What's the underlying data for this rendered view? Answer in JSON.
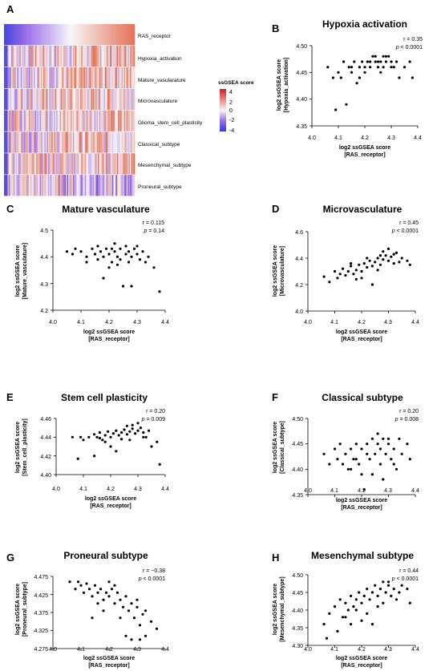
{
  "figure": {
    "heatmap": {
      "letter": "A",
      "rows": [
        "RAS_receptor",
        "Hypoxia_activation",
        "Mature_vasularature",
        "Microvasculature",
        "Glioma_stem_cell_plasticity",
        "Classical_subtype",
        "Mesenchymal_subtype",
        "Proneural_subtype"
      ],
      "legend_title": "ssGSEA score",
      "legend_ticks": [
        "4",
        "2",
        "0",
        "-2",
        "-4"
      ],
      "colors": {
        "high": "#d7191c",
        "mid": "#f7f7f7",
        "low": "#2c3cd9",
        "lowmid": "#9b6ee8"
      }
    },
    "scatter_common": {
      "xlabel_line1": "log2 ssGSEA score",
      "xlabel_line2": "[RAS_receptor]",
      "ylabel_line1": "log2 ssGSEA score",
      "xticks": [
        "4.0",
        "4.1",
        "4.2",
        "4.3",
        "4.4"
      ],
      "r_prefix": "r = ",
      "p_prefix": "p",
      "point_color": "#000000"
    },
    "panels": [
      {
        "letter": "B",
        "title": "Hypoxia activation",
        "ylabel_line2": "[Hypoxia_activation]",
        "r": "0.35",
        "p": " < 0.0001",
        "yticks": [
          "4.50",
          "4.45",
          "4.40",
          "4.35"
        ]
      },
      {
        "letter": "C",
        "title": "Mature vasculature",
        "ylabel_line2": "[Mature_vasculature]",
        "r": "0.115",
        "p": " = 0.14",
        "yticks": [
          "4.5",
          "4.4",
          "4.3",
          "4.2"
        ]
      },
      {
        "letter": "D",
        "title": "Microvasculature",
        "ylabel_line2": "[Microvasculature]",
        "r": "0.45",
        "p": " < 0.0001",
        "yticks": [
          "4.6",
          "4.4",
          "4.2",
          "4.0"
        ]
      },
      {
        "letter": "E",
        "title": "Stem cell plasticity",
        "ylabel_line2": "[Stem_cell_plasticity]",
        "r": "0.20",
        "p": " = 0.009",
        "yticks": [
          "4.46",
          "4.44",
          "4.42",
          "4.40"
        ]
      },
      {
        "letter": "F",
        "title": "Classical subtype",
        "ylabel_line2": "[Classical_subtype]",
        "r": "0.20",
        "p": " = 0.008",
        "yticks": [
          "4.50",
          "4.45",
          "4.40",
          "4.35"
        ]
      },
      {
        "letter": "G",
        "title": "Proneural subtype",
        "ylabel_line2": "[Proneural_subtype]",
        "r": "−0.38",
        "p": " < 0.0001",
        "yticks": [
          "4.475",
          "4.425",
          "4.375",
          "4.325",
          "4.275"
        ]
      },
      {
        "letter": "H",
        "title": "Mesenchymal subtype",
        "ylabel_line2": "[Mesenchymal_subtype]",
        "r": "0.44",
        "p": " < 0.0001",
        "yticks": [
          "4.50",
          "4.45",
          "4.40",
          "4.35",
          "4.30"
        ]
      }
    ]
  },
  "chart_data": [
    {
      "type": "heatmap",
      "rows": [
        "RAS_receptor",
        "Hypoxia_activation",
        "Mature_vasularature",
        "Microvasculature",
        "Glioma_stem_cell_plasticity",
        "Classical_subtype",
        "Mesenchymal_subtype",
        "Proneural_subtype"
      ],
      "colorbar_range": [
        -4,
        4
      ],
      "legend_title": "ssGSEA score"
    },
    {
      "type": "scatter",
      "title": "Hypoxia activation",
      "xlim": [
        4.0,
        4.4
      ],
      "ylim": [
        4.35,
        4.5
      ],
      "r": 0.35,
      "p": "< 0.0001",
      "points": [
        [
          4.06,
          4.46
        ],
        [
          4.08,
          4.44
        ],
        [
          4.09,
          4.38
        ],
        [
          4.1,
          4.45
        ],
        [
          4.11,
          4.44
        ],
        [
          4.12,
          4.47
        ],
        [
          4.13,
          4.39
        ],
        [
          4.14,
          4.46
        ],
        [
          4.15,
          4.45
        ],
        [
          4.16,
          4.47
        ],
        [
          4.17,
          4.43
        ],
        [
          4.18,
          4.46
        ],
        [
          4.19,
          4.47
        ],
        [
          4.2,
          4.45
        ],
        [
          4.21,
          4.47
        ],
        [
          4.22,
          4.46
        ],
        [
          4.23,
          4.48
        ],
        [
          4.24,
          4.47
        ],
        [
          4.25,
          4.46
        ],
        [
          4.26,
          4.47
        ],
        [
          4.27,
          4.46
        ],
        [
          4.28,
          4.47
        ],
        [
          4.29,
          4.48
        ],
        [
          4.3,
          4.47
        ],
        [
          4.31,
          4.46
        ],
        [
          4.32,
          4.47
        ],
        [
          4.33,
          4.44
        ],
        [
          4.35,
          4.46
        ],
        [
          4.37,
          4.47
        ],
        [
          4.38,
          4.44
        ],
        [
          4.22,
          4.47
        ],
        [
          4.24,
          4.48
        ],
        [
          4.26,
          4.45
        ],
        [
          4.28,
          4.48
        ],
        [
          4.2,
          4.46
        ],
        [
          4.18,
          4.44
        ],
        [
          4.3,
          4.46
        ],
        [
          4.15,
          4.46
        ],
        [
          4.25,
          4.47
        ],
        [
          4.27,
          4.48
        ]
      ]
    },
    {
      "type": "scatter",
      "title": "Mature vasculature",
      "xlim": [
        4.0,
        4.4
      ],
      "ylim": [
        4.2,
        4.5
      ],
      "r": 0.115,
      "p": "= 0.14",
      "points": [
        [
          4.05,
          4.42
        ],
        [
          4.07,
          4.41
        ],
        [
          4.08,
          4.43
        ],
        [
          4.1,
          4.42
        ],
        [
          4.12,
          4.4
        ],
        [
          4.14,
          4.43
        ],
        [
          4.15,
          4.41
        ],
        [
          4.16,
          4.39
        ],
        [
          4.17,
          4.42
        ],
        [
          4.18,
          4.4
        ],
        [
          4.19,
          4.43
        ],
        [
          4.2,
          4.41
        ],
        [
          4.21,
          4.38
        ],
        [
          4.22,
          4.42
        ],
        [
          4.23,
          4.4
        ],
        [
          4.24,
          4.43
        ],
        [
          4.25,
          4.29
        ],
        [
          4.26,
          4.41
        ],
        [
          4.27,
          4.42
        ],
        [
          4.28,
          4.4
        ],
        [
          4.29,
          4.43
        ],
        [
          4.3,
          4.41
        ],
        [
          4.31,
          4.39
        ],
        [
          4.32,
          4.42
        ],
        [
          4.33,
          4.38
        ],
        [
          4.36,
          4.36
        ],
        [
          4.38,
          4.27
        ],
        [
          4.2,
          4.36
        ],
        [
          4.18,
          4.32
        ],
        [
          4.28,
          4.29
        ],
        [
          4.22,
          4.45
        ],
        [
          4.26,
          4.44
        ],
        [
          4.3,
          4.44
        ],
        [
          4.24,
          4.39
        ],
        [
          4.16,
          4.44
        ],
        [
          4.12,
          4.38
        ],
        [
          4.34,
          4.4
        ],
        [
          4.21,
          4.43
        ],
        [
          4.27,
          4.38
        ],
        [
          4.23,
          4.37
        ]
      ]
    },
    {
      "type": "scatter",
      "title": "Microvasculature",
      "xlim": [
        4.0,
        4.4
      ],
      "ylim": [
        4.0,
        4.6
      ],
      "r": 0.45,
      "p": "< 0.0001",
      "points": [
        [
          4.06,
          4.26
        ],
        [
          4.08,
          4.22
        ],
        [
          4.1,
          4.3
        ],
        [
          4.11,
          4.25
        ],
        [
          4.12,
          4.28
        ],
        [
          4.13,
          4.32
        ],
        [
          4.14,
          4.27
        ],
        [
          4.15,
          4.3
        ],
        [
          4.16,
          4.34
        ],
        [
          4.17,
          4.28
        ],
        [
          4.18,
          4.31
        ],
        [
          4.19,
          4.35
        ],
        [
          4.2,
          4.3
        ],
        [
          4.21,
          4.36
        ],
        [
          4.22,
          4.33
        ],
        [
          4.23,
          4.38
        ],
        [
          4.24,
          4.34
        ],
        [
          4.25,
          4.37
        ],
        [
          4.26,
          4.4
        ],
        [
          4.27,
          4.35
        ],
        [
          4.28,
          4.39
        ],
        [
          4.29,
          4.42
        ],
        [
          4.3,
          4.38
        ],
        [
          4.31,
          4.41
        ],
        [
          4.32,
          4.36
        ],
        [
          4.33,
          4.44
        ],
        [
          4.35,
          4.4
        ],
        [
          4.37,
          4.38
        ],
        [
          4.38,
          4.35
        ],
        [
          4.2,
          4.25
        ],
        [
          4.24,
          4.2
        ],
        [
          4.28,
          4.45
        ],
        [
          4.3,
          4.47
        ],
        [
          4.26,
          4.31
        ],
        [
          4.22,
          4.4
        ],
        [
          4.18,
          4.24
        ],
        [
          4.32,
          4.43
        ],
        [
          4.27,
          4.42
        ],
        [
          4.16,
          4.36
        ],
        [
          4.34,
          4.37
        ]
      ]
    },
    {
      "type": "scatter",
      "title": "Stem cell plasticity",
      "xlim": [
        4.0,
        4.4
      ],
      "ylim": [
        4.4,
        4.46
      ],
      "r": 0.2,
      "p": "= 0.009",
      "points": [
        [
          4.06,
          4.44
        ],
        [
          4.08,
          4.417
        ],
        [
          4.09,
          4.44
        ],
        [
          4.1,
          4.437
        ],
        [
          4.12,
          4.44
        ],
        [
          4.14,
          4.443
        ],
        [
          4.15,
          4.44
        ],
        [
          4.16,
          4.445
        ],
        [
          4.17,
          4.437
        ],
        [
          4.18,
          4.442
        ],
        [
          4.19,
          4.446
        ],
        [
          4.2,
          4.44
        ],
        [
          4.21,
          4.444
        ],
        [
          4.22,
          4.447
        ],
        [
          4.23,
          4.442
        ],
        [
          4.24,
          4.445
        ],
        [
          4.25,
          4.448
        ],
        [
          4.26,
          4.443
        ],
        [
          4.27,
          4.446
        ],
        [
          4.28,
          4.449
        ],
        [
          4.29,
          4.444
        ],
        [
          4.3,
          4.447
        ],
        [
          4.31,
          4.45
        ],
        [
          4.32,
          4.445
        ],
        [
          4.33,
          4.44
        ],
        [
          4.35,
          4.43
        ],
        [
          4.37,
          4.435
        ],
        [
          4.38,
          4.411
        ],
        [
          4.2,
          4.43
        ],
        [
          4.22,
          4.425
        ],
        [
          4.26,
          4.452
        ],
        [
          4.28,
          4.453
        ],
        [
          4.3,
          4.455
        ],
        [
          4.24,
          4.438
        ],
        [
          4.18,
          4.435
        ],
        [
          4.14,
          4.42
        ],
        [
          4.32,
          4.44
        ],
        [
          4.27,
          4.437
        ],
        [
          4.16,
          4.439
        ],
        [
          4.34,
          4.447
        ]
      ]
    },
    {
      "type": "scatter",
      "title": "Classical subtype",
      "xlim": [
        4.0,
        4.4
      ],
      "ylim": [
        4.35,
        4.5
      ],
      "r": 0.2,
      "p": "= 0.008",
      "points": [
        [
          4.06,
          4.43
        ],
        [
          4.08,
          4.41
        ],
        [
          4.1,
          4.44
        ],
        [
          4.11,
          4.42
        ],
        [
          4.12,
          4.45
        ],
        [
          4.13,
          4.41
        ],
        [
          4.14,
          4.43
        ],
        [
          4.15,
          4.4
        ],
        [
          4.16,
          4.44
        ],
        [
          4.17,
          4.42
        ],
        [
          4.18,
          4.45
        ],
        [
          4.19,
          4.41
        ],
        [
          4.2,
          4.44
        ],
        [
          4.21,
          4.36
        ],
        [
          4.22,
          4.45
        ],
        [
          4.23,
          4.42
        ],
        [
          4.24,
          4.46
        ],
        [
          4.25,
          4.43
        ],
        [
          4.26,
          4.45
        ],
        [
          4.27,
          4.41
        ],
        [
          4.28,
          4.46
        ],
        [
          4.29,
          4.43
        ],
        [
          4.3,
          4.45
        ],
        [
          4.31,
          4.42
        ],
        [
          4.32,
          4.44
        ],
        [
          4.33,
          4.4
        ],
        [
          4.35,
          4.43
        ],
        [
          4.37,
          4.45
        ],
        [
          4.38,
          4.42
        ],
        [
          4.2,
          4.39
        ],
        [
          4.24,
          4.39
        ],
        [
          4.28,
          4.38
        ],
        [
          4.3,
          4.46
        ],
        [
          4.26,
          4.47
        ],
        [
          4.22,
          4.43
        ],
        [
          4.18,
          4.42
        ],
        [
          4.32,
          4.41
        ],
        [
          4.27,
          4.44
        ],
        [
          4.16,
          4.4
        ],
        [
          4.34,
          4.46
        ]
      ]
    },
    {
      "type": "scatter",
      "title": "Proneural subtype",
      "xlim": [
        4.0,
        4.4
      ],
      "ylim": [
        4.275,
        4.475
      ],
      "r": -0.38,
      "p": "< 0.0001",
      "points": [
        [
          4.06,
          4.46
        ],
        [
          4.08,
          4.44
        ],
        [
          4.09,
          4.46
        ],
        [
          4.1,
          4.45
        ],
        [
          4.11,
          4.43
        ],
        [
          4.12,
          4.455
        ],
        [
          4.13,
          4.44
        ],
        [
          4.14,
          4.42
        ],
        [
          4.15,
          4.45
        ],
        [
          4.16,
          4.43
        ],
        [
          4.17,
          4.44
        ],
        [
          4.18,
          4.41
        ],
        [
          4.19,
          4.43
        ],
        [
          4.2,
          4.42
        ],
        [
          4.21,
          4.44
        ],
        [
          4.22,
          4.4
        ],
        [
          4.23,
          4.43
        ],
        [
          4.24,
          4.41
        ],
        [
          4.25,
          4.39
        ],
        [
          4.26,
          4.42
        ],
        [
          4.27,
          4.38
        ],
        [
          4.28,
          4.4
        ],
        [
          4.29,
          4.36
        ],
        [
          4.3,
          4.39
        ],
        [
          4.31,
          4.34
        ],
        [
          4.32,
          4.37
        ],
        [
          4.33,
          4.31
        ],
        [
          4.35,
          4.35
        ],
        [
          4.37,
          4.33
        ],
        [
          4.26,
          4.31
        ],
        [
          4.28,
          4.3
        ],
        [
          4.31,
          4.3
        ],
        [
          4.2,
          4.46
        ],
        [
          4.22,
          4.45
        ],
        [
          4.18,
          4.38
        ],
        [
          4.24,
          4.36
        ],
        [
          4.16,
          4.4
        ],
        [
          4.3,
          4.41
        ],
        [
          4.14,
          4.36
        ],
        [
          4.33,
          4.38
        ]
      ]
    },
    {
      "type": "scatter",
      "title": "Mesenchymal subtype",
      "xlim": [
        4.0,
        4.4
      ],
      "ylim": [
        4.3,
        4.5
      ],
      "r": 0.44,
      "p": "< 0.0001",
      "points": [
        [
          4.06,
          4.36
        ],
        [
          4.07,
          4.32
        ],
        [
          4.08,
          4.39
        ],
        [
          4.1,
          4.41
        ],
        [
          4.11,
          4.34
        ],
        [
          4.12,
          4.43
        ],
        [
          4.13,
          4.38
        ],
        [
          4.14,
          4.42
        ],
        [
          4.15,
          4.4
        ],
        [
          4.16,
          4.44
        ],
        [
          4.17,
          4.41
        ],
        [
          4.18,
          4.43
        ],
        [
          4.19,
          4.45
        ],
        [
          4.2,
          4.42
        ],
        [
          4.21,
          4.44
        ],
        [
          4.22,
          4.46
        ],
        [
          4.23,
          4.43
        ],
        [
          4.24,
          4.45
        ],
        [
          4.25,
          4.47
        ],
        [
          4.26,
          4.44
        ],
        [
          4.27,
          4.46
        ],
        [
          4.28,
          4.48
        ],
        [
          4.29,
          4.45
        ],
        [
          4.3,
          4.47
        ],
        [
          4.31,
          4.44
        ],
        [
          4.32,
          4.46
        ],
        [
          4.33,
          4.43
        ],
        [
          4.35,
          4.47
        ],
        [
          4.37,
          4.46
        ],
        [
          4.38,
          4.42
        ],
        [
          4.2,
          4.37
        ],
        [
          4.24,
          4.36
        ],
        [
          4.22,
          4.39
        ],
        [
          4.26,
          4.41
        ],
        [
          4.28,
          4.42
        ],
        [
          4.16,
          4.36
        ],
        [
          4.3,
          4.48
        ],
        [
          4.18,
          4.4
        ],
        [
          4.14,
          4.38
        ],
        [
          4.34,
          4.45
        ]
      ]
    }
  ]
}
